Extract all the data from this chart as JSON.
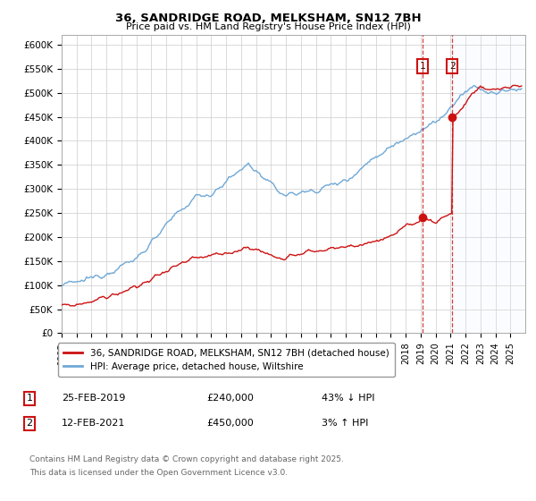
{
  "title": "36, SANDRIDGE ROAD, MELKSHAM, SN12 7BH",
  "subtitle": "Price paid vs. HM Land Registry's House Price Index (HPI)",
  "ylim": [
    0,
    620000
  ],
  "yticks": [
    0,
    50000,
    100000,
    150000,
    200000,
    250000,
    300000,
    350000,
    400000,
    450000,
    500000,
    550000,
    600000
  ],
  "ytick_labels": [
    "£0",
    "£50K",
    "£100K",
    "£150K",
    "£200K",
    "£250K",
    "£300K",
    "£350K",
    "£400K",
    "£450K",
    "£500K",
    "£550K",
    "£600K"
  ],
  "xlim_start": 1995.0,
  "xlim_end": 2026.0,
  "hpi_color": "#6fa8d6",
  "price_color": "#cc1111",
  "transaction1_date": 2019.14,
  "transaction1_price": 240000,
  "transaction1_label": "1",
  "transaction2_date": 2021.12,
  "transaction2_price": 450000,
  "transaction2_label": "2",
  "legend_entry1": "36, SANDRIDGE ROAD, MELKSHAM, SN12 7BH (detached house)",
  "legend_entry2": "HPI: Average price, detached house, Wiltshire",
  "footer1": "Contains HM Land Registry data © Crown copyright and database right 2025.",
  "footer2": "This data is licensed under the Open Government Licence v3.0.",
  "table_row1": [
    "1",
    "25-FEB-2019",
    "£240,000",
    "43% ↓ HPI"
  ],
  "table_row2": [
    "2",
    "12-FEB-2021",
    "£450,000",
    "3% ↑ HPI"
  ],
  "bg_color": "#ffffff",
  "grid_color": "#cccccc",
  "shade_color": "#ddeeff"
}
